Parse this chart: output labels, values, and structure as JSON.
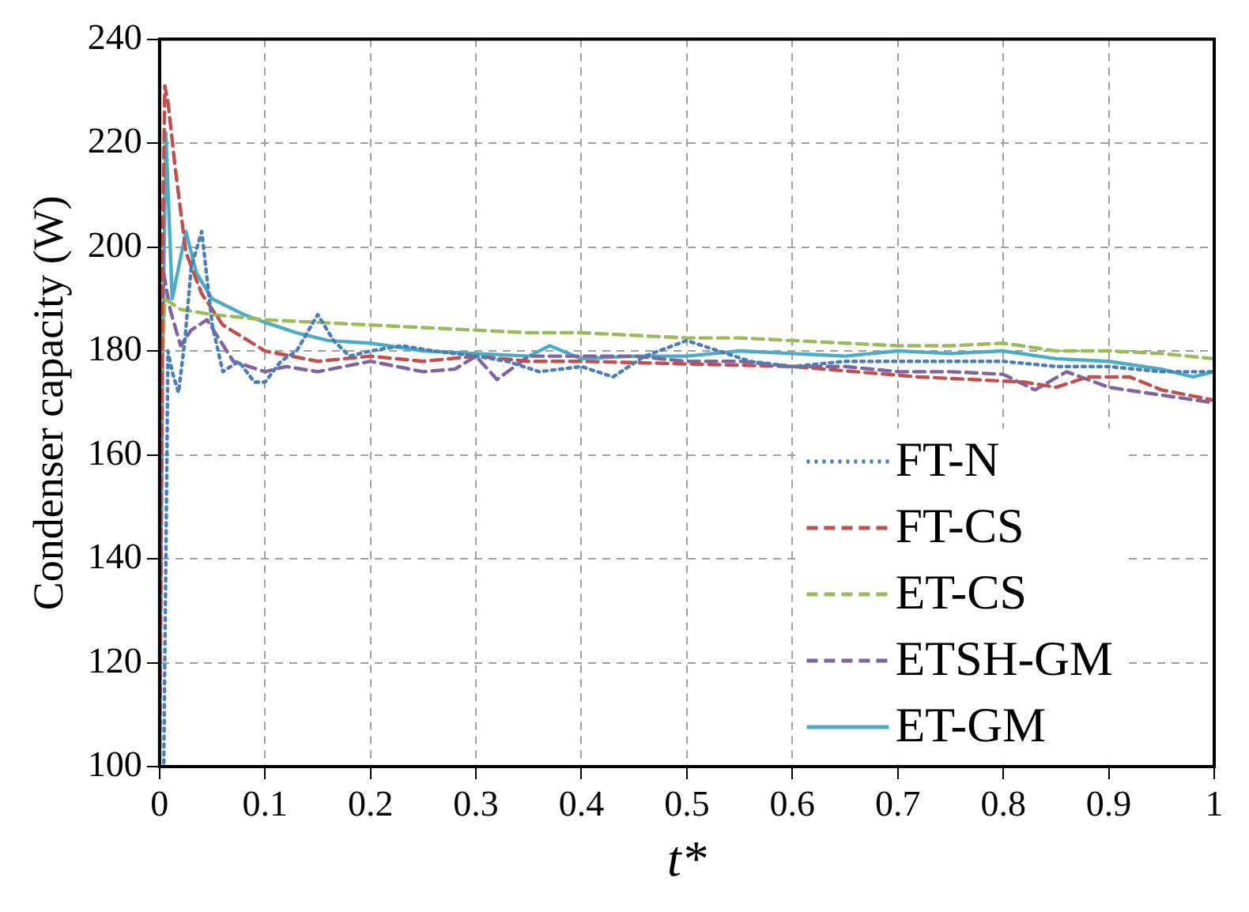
{
  "chart_data": {
    "type": "line",
    "xlabel": "t*",
    "ylabel": "Condenser capacity (W)",
    "xlim": [
      0,
      1
    ],
    "xticks": [
      0,
      0.1,
      0.2,
      0.3,
      0.4,
      0.5,
      0.6,
      0.7,
      0.8,
      0.9,
      1
    ],
    "ylim": [
      100,
      240
    ],
    "yticks": [
      100,
      120,
      140,
      160,
      180,
      200,
      220,
      240
    ],
    "grid": true,
    "legend": "bottom right",
    "marker": "none",
    "series": [
      {
        "name": "FT-N",
        "color": "#4a7ebb",
        "line_style": "dotted",
        "x": [
          0,
          0.004,
          0.008,
          0.012,
          0.018,
          0.024,
          0.03,
          0.04,
          0.05,
          0.06,
          0.075,
          0.09,
          0.1,
          0.115,
          0.13,
          0.15,
          0.165,
          0.18,
          0.2,
          0.23,
          0.26,
          0.3,
          0.33,
          0.36,
          0.4,
          0.43,
          0.46,
          0.5,
          0.53,
          0.56,
          0.6,
          0.65,
          0.7,
          0.75,
          0.8,
          0.85,
          0.9,
          0.95,
          1
        ],
        "values": [
          100,
          100,
          180,
          176,
          172,
          182,
          196,
          203,
          185,
          176,
          178,
          174,
          174,
          178,
          180,
          187,
          182,
          179,
          180,
          181,
          180,
          179,
          178,
          176,
          177,
          175,
          179,
          182,
          180,
          178,
          177,
          178,
          178,
          178,
          178,
          177,
          177,
          176,
          176
        ]
      },
      {
        "name": "FT-CS",
        "color": "#c0504d",
        "line_style": "dashed",
        "x": [
          0,
          0.003,
          0.005,
          0.008,
          0.015,
          0.025,
          0.04,
          0.06,
          0.1,
          0.15,
          0.2,
          0.25,
          0.3,
          0.35,
          0.4,
          0.5,
          0.6,
          0.66,
          0.72,
          0.77,
          0.82,
          0.85,
          0.88,
          0.92,
          0.95,
          1
        ],
        "values": [
          100,
          200,
          231,
          228,
          215,
          199,
          191,
          185,
          180,
          178,
          179,
          178,
          179,
          178,
          178,
          177.5,
          177,
          176,
          175,
          174.5,
          174,
          173,
          175,
          175,
          172.5,
          170.5
        ]
      },
      {
        "name": "ET-CS",
        "color": "#9bbb59",
        "line_style": "dashed",
        "x": [
          0,
          0.005,
          0.02,
          0.05,
          0.1,
          0.15,
          0.2,
          0.25,
          0.3,
          0.35,
          0.4,
          0.45,
          0.5,
          0.55,
          0.6,
          0.65,
          0.7,
          0.75,
          0.8,
          0.85,
          0.9,
          0.95,
          1
        ],
        "values": [
          160,
          190,
          188,
          187,
          186,
          185.5,
          185,
          184.5,
          184,
          183.5,
          183.5,
          183,
          182.5,
          182.5,
          182,
          181.5,
          181,
          181,
          181.5,
          180,
          180,
          179.5,
          178.5
        ]
      },
      {
        "name": "ETSH-GM",
        "color": "#8064a2",
        "line_style": "dashed",
        "x": [
          0,
          0.003,
          0.01,
          0.02,
          0.03,
          0.045,
          0.07,
          0.1,
          0.12,
          0.15,
          0.2,
          0.25,
          0.28,
          0.3,
          0.32,
          0.35,
          0.4,
          0.45,
          0.5,
          0.55,
          0.6,
          0.65,
          0.7,
          0.75,
          0.8,
          0.83,
          0.86,
          0.9,
          0.95,
          1
        ],
        "values": [
          100,
          196,
          188,
          181,
          184,
          186,
          178,
          176,
          177,
          176,
          178,
          176,
          176.5,
          179,
          174.5,
          179,
          179,
          179,
          178,
          178,
          177,
          177,
          176,
          176,
          175.5,
          172.5,
          176,
          173,
          171.5,
          170
        ]
      },
      {
        "name": "ET-GM",
        "color": "#4bacc6",
        "line_style": "solid",
        "x": [
          0,
          0.003,
          0.006,
          0.012,
          0.018,
          0.025,
          0.035,
          0.05,
          0.08,
          0.1,
          0.13,
          0.16,
          0.2,
          0.25,
          0.3,
          0.35,
          0.37,
          0.4,
          0.45,
          0.5,
          0.55,
          0.6,
          0.65,
          0.7,
          0.75,
          0.8,
          0.85,
          0.9,
          0.95,
          0.98,
          1
        ],
        "values": [
          100,
          180,
          222,
          190,
          196,
          203,
          195,
          190,
          187,
          185.5,
          183.5,
          182,
          181.5,
          180,
          179.5,
          179,
          181,
          178.5,
          179,
          179,
          180,
          179.5,
          179,
          180,
          179.5,
          180,
          178.5,
          178,
          176.5,
          175,
          176
        ]
      }
    ]
  }
}
